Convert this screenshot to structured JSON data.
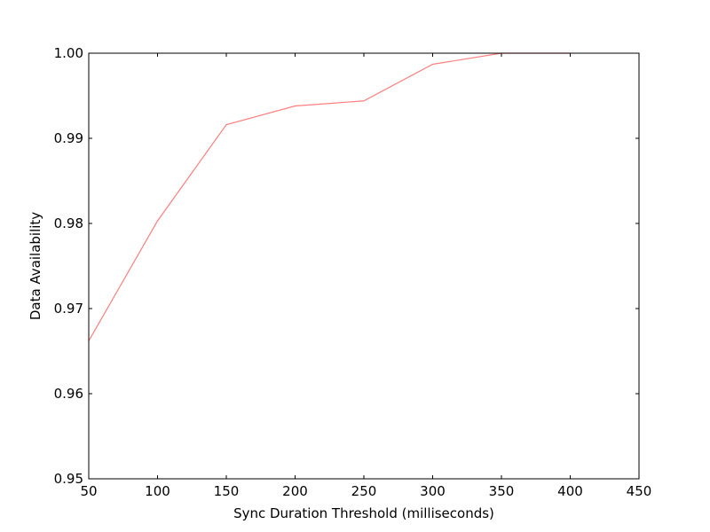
{
  "chart_data": {
    "type": "line",
    "title": "",
    "xlabel": "Sync Duration Threshold (milliseconds)",
    "ylabel": "Data Availability",
    "xlim": [
      50,
      450
    ],
    "ylim": [
      0.95,
      1.0
    ],
    "x_ticks": [
      50,
      100,
      150,
      200,
      250,
      300,
      350,
      400,
      450
    ],
    "y_ticks": [
      0.95,
      0.96,
      0.97,
      0.98,
      0.99,
      1.0
    ],
    "x_tick_labels": [
      "50",
      "100",
      "150",
      "200",
      "250",
      "300",
      "350",
      "400",
      "450"
    ],
    "y_tick_labels": [
      "0.95",
      "0.96",
      "0.97",
      "0.98",
      "0.99",
      "1.00"
    ],
    "grid": false,
    "series": [
      {
        "color": "#ff7f7f",
        "x": [
          50,
          100,
          150,
          200,
          250,
          300,
          350,
          400
        ],
        "y": [
          0.9662,
          0.9803,
          0.9916,
          0.9938,
          0.9944,
          0.9987,
          1.0,
          1.0
        ]
      }
    ]
  }
}
